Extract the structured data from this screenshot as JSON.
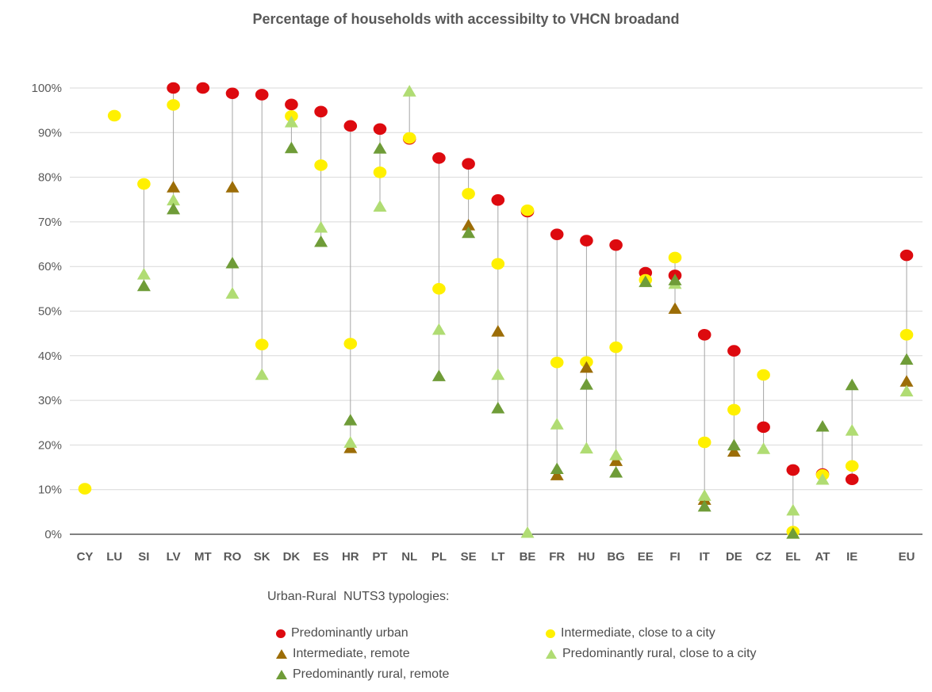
{
  "title": "Percentage of households with accessibilty to VHCN broadand",
  "legend": {
    "heading": "Urban-Rural  NUTS3 typologies:",
    "items": [
      {
        "label": "Predominantly urban",
        "marker": "circle",
        "series": "urban"
      },
      {
        "label": "Intermediate, close to a city",
        "marker": "circle",
        "series": "int_city"
      },
      {
        "label": "Intermediate, remote",
        "marker": "triangle",
        "series": "int_remote"
      },
      {
        "label": "Predominantly rural, close to a city",
        "marker": "triangle",
        "series": "rural_city"
      },
      {
        "label": "Predominantly rural, remote",
        "marker": "triangle",
        "series": "rural_remote"
      }
    ]
  },
  "chart_data": {
    "type": "scatter",
    "title": "Percentage of households with accessibilty to VHCN broadand",
    "xlabel": "",
    "ylabel": "",
    "ylim": [
      0,
      100
    ],
    "ytick_step": 10,
    "y_ticks": [
      "0%",
      "10%",
      "20%",
      "30%",
      "40%",
      "50%",
      "60%",
      "70%",
      "80%",
      "90%",
      "100%"
    ],
    "grid": true,
    "legend_position": "bottom",
    "last_category_separated": true,
    "categories": [
      "CY",
      "LU",
      "SI",
      "LV",
      "MT",
      "RO",
      "SK",
      "DK",
      "ES",
      "HR",
      "PT",
      "NL",
      "PL",
      "SE",
      "LT",
      "BE",
      "FR",
      "HU",
      "BG",
      "EE",
      "FI",
      "IT",
      "DE",
      "CZ",
      "EL",
      "AT",
      "IE",
      "EU"
    ],
    "series": [
      {
        "key": "urban",
        "name": "Predominantly urban",
        "marker": "circle",
        "color": "#dd0a0f",
        "values": [
          null,
          null,
          null,
          100,
          100,
          98.8,
          98.5,
          96.3,
          94.7,
          91.5,
          90.8,
          88.6,
          84.3,
          83.0,
          74.9,
          72.3,
          67.2,
          65.8,
          64.8,
          58.6,
          58.0,
          44.7,
          41.1,
          24.0,
          14.4,
          13.5,
          12.3,
          62.5
        ]
      },
      {
        "key": "int_city",
        "name": "Intermediate, close to a city",
        "marker": "circle",
        "color": "#fff000",
        "values": [
          10.2,
          93.8,
          78.5,
          96.2,
          null,
          null,
          42.5,
          93.7,
          82.7,
          42.7,
          81.1,
          88.8,
          55.0,
          76.3,
          60.6,
          72.6,
          38.5,
          38.6,
          41.9,
          57.0,
          62.0,
          20.6,
          27.9,
          35.7,
          0.6,
          13.3,
          15.3,
          44.7
        ]
      },
      {
        "key": "int_remote",
        "name": "Intermediate, remote",
        "marker": "triangle",
        "color": "#9c6d07",
        "values": [
          null,
          null,
          null,
          77.8,
          null,
          77.8,
          null,
          null,
          null,
          19.4,
          null,
          null,
          null,
          69.3,
          45.5,
          null,
          13.3,
          37.4,
          16.5,
          null,
          50.6,
          7.8,
          18.6,
          null,
          null,
          null,
          null,
          34.3
        ]
      },
      {
        "key": "rural_city",
        "name": "Predominantly rural, close to a city",
        "marker": "triangle",
        "color": "#b0dc73",
        "values": [
          null,
          null,
          58.3,
          74.9,
          null,
          54.0,
          35.8,
          92.4,
          68.8,
          20.6,
          73.5,
          99.3,
          45.9,
          null,
          35.8,
          0.4,
          24.7,
          19.3,
          17.8,
          null,
          56.2,
          8.7,
          null,
          19.2,
          5.4,
          12.3,
          23.3,
          32.1
        ]
      },
      {
        "key": "rural_remote",
        "name": "Predominantly rural, remote",
        "marker": "triangle",
        "color": "#6f9c38",
        "values": [
          null,
          null,
          55.7,
          72.9,
          null,
          60.8,
          null,
          86.6,
          65.6,
          25.6,
          86.5,
          null,
          35.5,
          67.6,
          28.3,
          null,
          14.7,
          33.6,
          13.9,
          56.6,
          57.0,
          6.3,
          20.0,
          null,
          0.2,
          24.2,
          33.5,
          39.2
        ]
      }
    ],
    "colors": {
      "gridline": "#d9d9d9",
      "axis_line": "#000000",
      "connector_line": "#a6a6a6",
      "text": "#595959"
    }
  }
}
